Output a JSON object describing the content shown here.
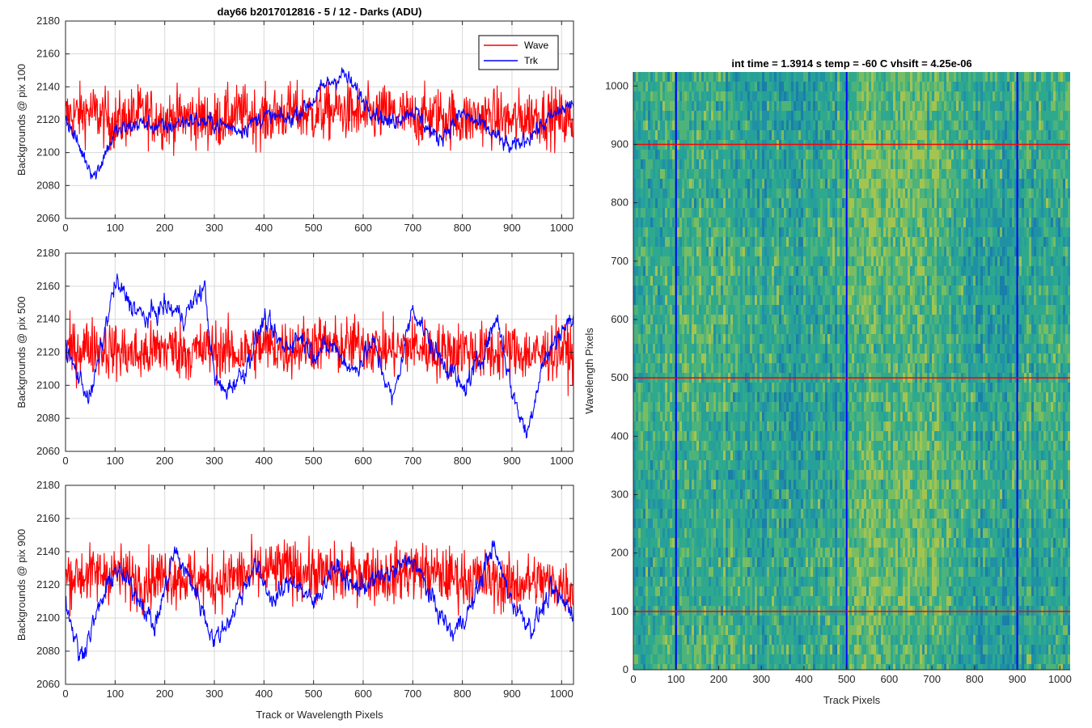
{
  "figure_title": "day66 b2017012816 - 5 / 12 - Darks (ADU)",
  "colors": {
    "wave": "#ff0000",
    "trk": "#0000ff",
    "grid": "#d9d9d9",
    "axis": "#262626",
    "heat_low": "#1f8fa3",
    "heat_mid": "#2aa889",
    "heat_high": "#a6c34a"
  },
  "chart_data": [
    {
      "type": "line",
      "title": "day66 b2017012816 - 5 / 12 - Darks (ADU)",
      "xlabel": "",
      "ylabel": "Backgrounds @ pix 100",
      "xlim": [
        0,
        1024
      ],
      "ylim": [
        2060,
        2180
      ],
      "xticks": [
        0,
        100,
        200,
        300,
        400,
        500,
        600,
        700,
        800,
        900,
        1000
      ],
      "yticks": [
        2060,
        2080,
        2100,
        2120,
        2140,
        2160,
        2180
      ],
      "grid": true,
      "legend": "top-right",
      "legend_labels": [
        "Wave",
        "Trk"
      ],
      "series": [
        {
          "name": "Wave",
          "color": "#ff0000",
          "x": [
            0,
            50,
            100,
            150,
            200,
            250,
            300,
            350,
            400,
            450,
            500,
            550,
            600,
            650,
            700,
            750,
            800,
            850,
            900,
            950,
            1000,
            1024
          ],
          "values": [
            2122,
            2125,
            2118,
            2124,
            2120,
            2122,
            2119,
            2124,
            2121,
            2125,
            2123,
            2126,
            2122,
            2124,
            2121,
            2123,
            2120,
            2122,
            2119,
            2123,
            2121,
            2118
          ],
          "spread": 14
        },
        {
          "name": "Trk",
          "color": "#0000ff",
          "x": [
            0,
            20,
            40,
            60,
            80,
            100,
            150,
            200,
            250,
            300,
            350,
            400,
            450,
            500,
            520,
            560,
            600,
            650,
            700,
            750,
            800,
            850,
            900,
            950,
            1000,
            1024
          ],
          "values": [
            2122,
            2108,
            2096,
            2086,
            2100,
            2112,
            2118,
            2115,
            2120,
            2118,
            2114,
            2122,
            2120,
            2132,
            2140,
            2148,
            2132,
            2118,
            2126,
            2108,
            2124,
            2114,
            2102,
            2114,
            2126,
            2130
          ],
          "spread": 5
        }
      ]
    },
    {
      "type": "line",
      "xlabel": "",
      "ylabel": "Backgrounds @ pix 500",
      "xlim": [
        0,
        1024
      ],
      "ylim": [
        2060,
        2180
      ],
      "xticks": [
        0,
        100,
        200,
        300,
        400,
        500,
        600,
        700,
        800,
        900,
        1000
      ],
      "yticks": [
        2060,
        2080,
        2100,
        2120,
        2140,
        2160,
        2180
      ],
      "grid": true,
      "series": [
        {
          "name": "Wave",
          "color": "#ff0000",
          "x": [
            0,
            50,
            100,
            150,
            200,
            250,
            300,
            350,
            400,
            450,
            500,
            550,
            600,
            650,
            700,
            750,
            800,
            850,
            900,
            950,
            1000,
            1024
          ],
          "values": [
            2120,
            2124,
            2121,
            2118,
            2123,
            2120,
            2122,
            2119,
            2124,
            2122,
            2126,
            2123,
            2125,
            2121,
            2124,
            2120,
            2122,
            2119,
            2121,
            2118,
            2122,
            2118
          ],
          "spread": 14
        },
        {
          "name": "Trk",
          "color": "#0000ff",
          "x": [
            0,
            25,
            50,
            100,
            130,
            160,
            200,
            240,
            280,
            300,
            320,
            360,
            400,
            440,
            470,
            500,
            540,
            580,
            620,
            660,
            700,
            740,
            780,
            800,
            840,
            870,
            900,
            930,
            960,
            1000,
            1024
          ],
          "values": [
            2122,
            2106,
            2092,
            2162,
            2150,
            2140,
            2148,
            2142,
            2160,
            2104,
            2096,
            2108,
            2140,
            2122,
            2130,
            2120,
            2124,
            2108,
            2126,
            2090,
            2148,
            2122,
            2108,
            2096,
            2118,
            2142,
            2096,
            2070,
            2112,
            2134,
            2140
          ],
          "spread": 6
        }
      ]
    },
    {
      "type": "line",
      "xlabel": "Track or Wavelength Pixels",
      "ylabel": "Backgrounds @ pix 900",
      "xlim": [
        0,
        1024
      ],
      "ylim": [
        2060,
        2180
      ],
      "xticks": [
        0,
        100,
        200,
        300,
        400,
        500,
        600,
        700,
        800,
        900,
        1000
      ],
      "yticks": [
        2060,
        2080,
        2100,
        2120,
        2140,
        2160,
        2180
      ],
      "grid": true,
      "series": [
        {
          "name": "Wave",
          "color": "#ff0000",
          "x": [
            0,
            50,
            100,
            150,
            200,
            250,
            300,
            350,
            400,
            450,
            500,
            550,
            600,
            650,
            700,
            750,
            800,
            850,
            900,
            950,
            1000,
            1024
          ],
          "values": [
            2125,
            2126,
            2128,
            2122,
            2126,
            2124,
            2121,
            2126,
            2128,
            2130,
            2127,
            2126,
            2128,
            2125,
            2129,
            2126,
            2124,
            2123,
            2120,
            2122,
            2120,
            2118
          ],
          "spread": 14
        },
        {
          "name": "Trk",
          "color": "#0000ff",
          "x": [
            0,
            30,
            60,
            100,
            150,
            180,
            220,
            260,
            300,
            340,
            380,
            420,
            460,
            500,
            540,
            580,
            620,
            660,
            700,
            740,
            780,
            820,
            860,
            900,
            940,
            980,
            1024
          ],
          "values": [
            2110,
            2076,
            2100,
            2130,
            2112,
            2094,
            2140,
            2118,
            2086,
            2104,
            2132,
            2110,
            2124,
            2108,
            2132,
            2118,
            2122,
            2128,
            2136,
            2110,
            2090,
            2108,
            2144,
            2110,
            2094,
            2116,
            2104
          ],
          "spread": 6
        }
      ]
    },
    {
      "type": "heatmap",
      "title": "int time = 1.3914 s    temp = -60 C    vhsift = 4.25e-06",
      "xlabel": "Track Pixels",
      "ylabel": "Wavelength Pixels",
      "xlim": [
        0,
        1024
      ],
      "ylim": [
        0,
        1024
      ],
      "xticks": [
        0,
        100,
        200,
        300,
        400,
        500,
        600,
        700,
        800,
        900,
        1000
      ],
      "yticks": [
        0,
        100,
        200,
        300,
        400,
        500,
        600,
        700,
        800,
        900,
        1000
      ],
      "vertical_lines": {
        "color": "#0000ff",
        "x": [
          100,
          500,
          900
        ]
      },
      "horizontal_lines": {
        "color": "#ff0000",
        "y": [
          100,
          500,
          900
        ]
      }
    }
  ]
}
